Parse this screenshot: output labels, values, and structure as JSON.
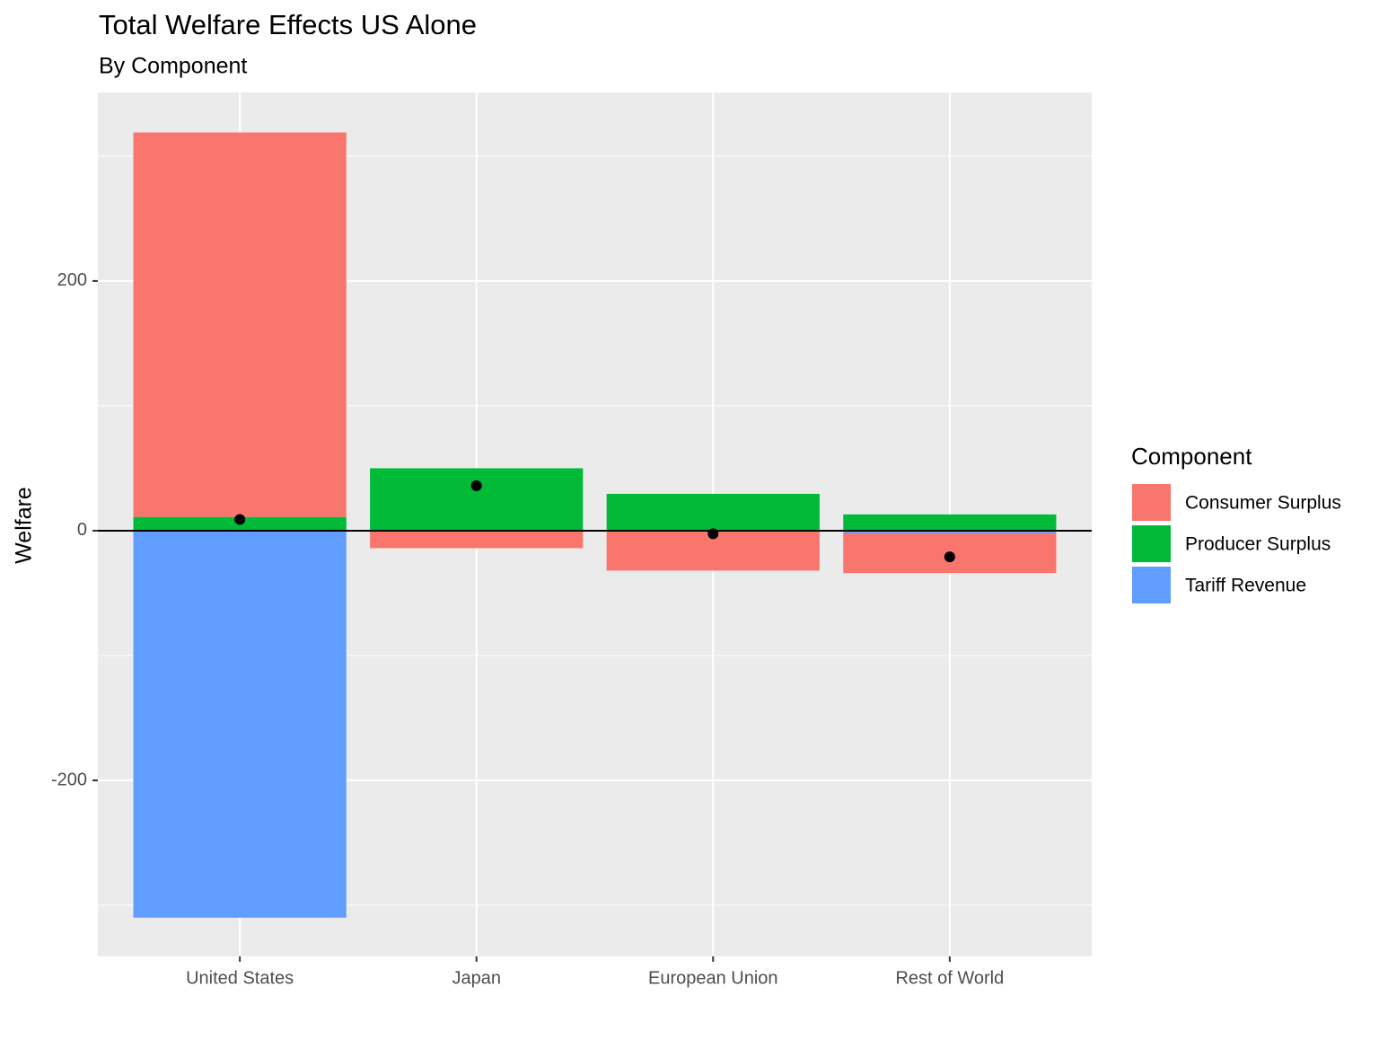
{
  "chart_data": {
    "type": "stacked_bar",
    "title": "Total Welfare Effects US Alone",
    "subtitle": "By Component",
    "y_label": "Welfare",
    "legend_title": "Component",
    "categories": [
      "United States",
      "Japan",
      "European Union",
      "Rest of World"
    ],
    "series": [
      {
        "name": "Consumer Surplus",
        "color": "#F8766D",
        "values": [
          308,
          -14,
          -32,
          -32
        ]
      },
      {
        "name": "Producer Surplus",
        "color": "#00BA38",
        "values": [
          11,
          50,
          29.5,
          13
        ]
      },
      {
        "name": "Tariff Revenue",
        "color": "#619CFF",
        "values": [
          -310,
          0,
          0,
          -2
        ]
      }
    ],
    "points": {
      "color": "#000000",
      "values": [
        9,
        36,
        -2.5,
        -21
      ]
    },
    "hline": 0,
    "ylim": [
      -341,
      351
    ],
    "yticks": [
      -200,
      0,
      200
    ],
    "minor_yticks": [
      -300,
      -100,
      100,
      300
    ],
    "grid": true,
    "legend": "right"
  }
}
